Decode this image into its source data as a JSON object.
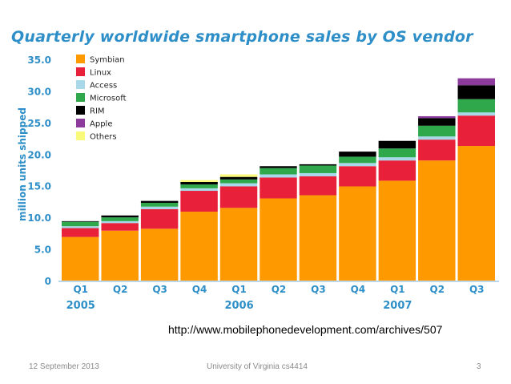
{
  "slide": {
    "source_url": "http://www.mobilephonedevelopment.com/archives/507",
    "footer_date": "12 September 2013",
    "footer_org": "University of Virginia cs4414",
    "page_number": "3"
  },
  "chart_data": {
    "type": "bar",
    "stacked": true,
    "title": "Quarterly worldwide smartphone sales by OS vendor",
    "ylabel": "million units shipped",
    "xlabel": "",
    "ylim": [
      0,
      35
    ],
    "yticks": [
      "0",
      "5.0",
      "10.0",
      "15.0",
      "20.0",
      "25.0",
      "30.0",
      "35.0"
    ],
    "ytick_values": [
      0,
      5,
      10,
      15,
      20,
      25,
      30,
      35
    ],
    "categories": [
      "Q1",
      "Q2",
      "Q3",
      "Q4",
      "Q1",
      "Q2",
      "Q3",
      "Q4",
      "Q1",
      "Q2",
      "Q3"
    ],
    "years": [
      {
        "label": "2005",
        "first": 0,
        "last": 3
      },
      {
        "label": "2006",
        "first": 4,
        "last": 7
      },
      {
        "label": "2007",
        "first": 8,
        "last": 10
      }
    ],
    "grid": false,
    "legend_position": "top-left",
    "axis_color": "#2e8fc8",
    "series": [
      {
        "name": "Symbian",
        "color": "#ff9900",
        "values": [
          6.9,
          7.9,
          8.2,
          10.9,
          11.5,
          13.0,
          13.5,
          14.9,
          15.8,
          19.0,
          21.3
        ]
      },
      {
        "name": "Linux",
        "color": "#e8203a",
        "values": [
          1.4,
          1.2,
          3.1,
          3.3,
          3.4,
          3.3,
          3.0,
          3.2,
          3.2,
          3.3,
          4.8
        ]
      },
      {
        "name": "Access",
        "color": "#a8d8ea",
        "values": [
          0.3,
          0.3,
          0.4,
          0.4,
          0.5,
          0.5,
          0.5,
          0.5,
          0.5,
          0.5,
          0.5
        ]
      },
      {
        "name": "Microsoft",
        "color": "#2ea84a",
        "values": [
          0.7,
          0.6,
          0.6,
          0.6,
          0.6,
          1.0,
          1.2,
          1.0,
          1.4,
          1.7,
          2.1
        ]
      },
      {
        "name": "RIM",
        "color": "#000000",
        "values": [
          0.1,
          0.3,
          0.3,
          0.4,
          0.4,
          0.3,
          0.2,
          0.8,
          1.2,
          1.2,
          2.2
        ]
      },
      {
        "name": "Apple",
        "color": "#8c3a9c",
        "values": [
          0,
          0,
          0,
          0,
          0,
          0,
          0,
          0,
          0,
          0.3,
          1.1
        ]
      },
      {
        "name": "Others",
        "color": "#fafa7a",
        "values": [
          0,
          0,
          0,
          0.3,
          0.4,
          0,
          0,
          0,
          0,
          0,
          0
        ]
      }
    ]
  }
}
